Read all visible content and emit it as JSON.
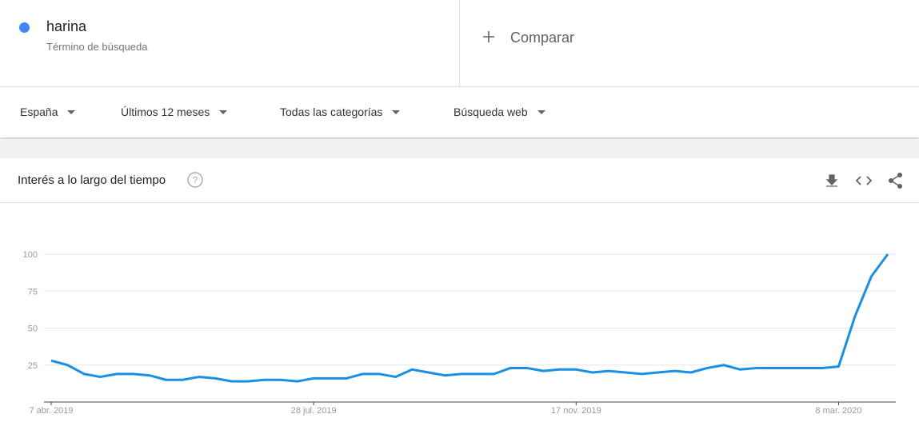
{
  "search_term": {
    "subtitle": "Término de búsqueda"
  },
  "compare": "Comparar",
  "filters": [
    "España",
    "Últimos 12 meses",
    "Todas las categorías",
    "Búsqueda web"
  ],
  "panel_title": "Interés a lo largo del tiempo",
  "chart_data": {
    "type": "line",
    "categories": [
      "7 abr. 2019",
      null,
      null,
      null,
      null,
      null,
      null,
      null,
      null,
      null,
      null,
      null,
      null,
      null,
      null,
      null,
      "28 jul. 2019",
      null,
      null,
      null,
      null,
      null,
      null,
      null,
      null,
      null,
      null,
      null,
      null,
      null,
      null,
      null,
      "17 nov. 2019",
      null,
      null,
      null,
      null,
      null,
      null,
      null,
      null,
      null,
      null,
      null,
      null,
      null,
      null,
      null,
      "8 mar. 2020",
      null,
      null,
      null
    ],
    "series": [
      {
        "name": "harina",
        "color": "#1a8fe3",
        "values": [
          28,
          25,
          19,
          17,
          19,
          19,
          18,
          15,
          15,
          17,
          16,
          14,
          14,
          15,
          15,
          14,
          16,
          16,
          16,
          19,
          19,
          17,
          22,
          20,
          18,
          19,
          19,
          19,
          23,
          23,
          21,
          22,
          22,
          20,
          21,
          20,
          19,
          20,
          21,
          20,
          23,
          25,
          22,
          23,
          23,
          23,
          23,
          23,
          24,
          58,
          85,
          100
        ]
      }
    ],
    "ylim": [
      0,
      100
    ],
    "yticks": [
      25,
      50,
      75,
      100
    ],
    "grid": true
  }
}
